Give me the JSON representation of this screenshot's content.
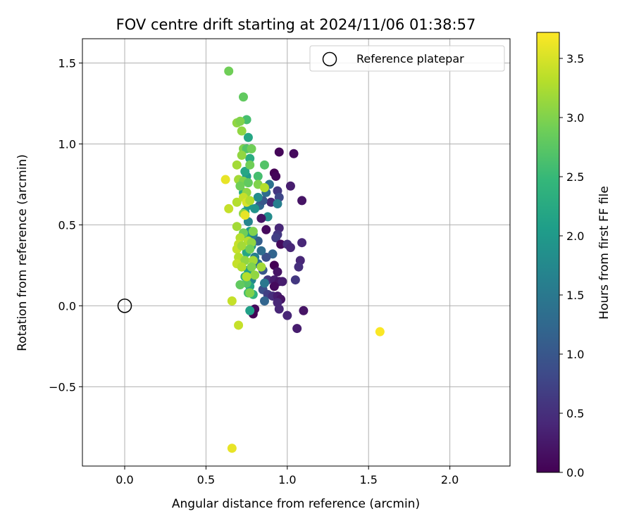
{
  "chart_data": {
    "type": "scatter",
    "title": "FOV centre drift starting at 2024/11/06 01:38:57",
    "xlabel": "Angular distance from reference (arcmin)",
    "ylabel": "Rotation from reference (arcmin)",
    "xlim": [
      -0.26,
      2.37
    ],
    "ylim": [
      -0.99,
      1.65
    ],
    "xticks": [
      0.0,
      0.5,
      1.0,
      1.5,
      2.0
    ],
    "xtick_labels": [
      "0.0",
      "0.5",
      "1.0",
      "1.5",
      "2.0"
    ],
    "yticks": [
      -0.5,
      0.0,
      0.5,
      1.0,
      1.5
    ],
    "ytick_labels": [
      "−0.5",
      "0.0",
      "0.5",
      "1.0",
      "1.5"
    ],
    "grid": true,
    "legend": {
      "placement": "top-right",
      "entries": [
        "Reference platepar"
      ]
    },
    "reference_point": {
      "x": 0.0,
      "y": 0.0
    },
    "colorbar": {
      "label": "Hours from first FF file",
      "range": [
        0.0,
        3.72
      ],
      "ticks": [
        0.0,
        0.5,
        1.0,
        1.5,
        2.0,
        2.5,
        3.0,
        3.5
      ],
      "tick_labels": [
        "0.0",
        "0.5",
        "1.0",
        "1.5",
        "2.0",
        "2.5",
        "3.0",
        "3.5"
      ],
      "colormap": "viridis"
    },
    "points": [
      {
        "x": 0.95,
        "y": 0.95,
        "c": 0.05
      },
      {
        "x": 1.04,
        "y": 0.94,
        "c": 0.1
      },
      {
        "x": 0.92,
        "y": 0.82,
        "c": 0.0
      },
      {
        "x": 0.93,
        "y": 0.8,
        "c": 0.05
      },
      {
        "x": 1.02,
        "y": 0.74,
        "c": 0.3
      },
      {
        "x": 1.09,
        "y": 0.65,
        "c": 0.2
      },
      {
        "x": 0.94,
        "y": 0.71,
        "c": 0.6
      },
      {
        "x": 0.95,
        "y": 0.67,
        "c": 0.8
      },
      {
        "x": 0.9,
        "y": 0.64,
        "c": 0.4
      },
      {
        "x": 0.94,
        "y": 0.63,
        "c": 1.6
      },
      {
        "x": 0.88,
        "y": 0.55,
        "c": 1.8
      },
      {
        "x": 0.84,
        "y": 0.54,
        "c": 0.2
      },
      {
        "x": 0.87,
        "y": 0.47,
        "c": 0.1
      },
      {
        "x": 0.95,
        "y": 0.48,
        "c": 0.4
      },
      {
        "x": 0.94,
        "y": 0.44,
        "c": 0.6
      },
      {
        "x": 0.93,
        "y": 0.42,
        "c": 0.7
      },
      {
        "x": 0.96,
        "y": 0.38,
        "c": 0.1
      },
      {
        "x": 1.0,
        "y": 0.38,
        "c": 0.5
      },
      {
        "x": 1.02,
        "y": 0.36,
        "c": 0.4
      },
      {
        "x": 1.09,
        "y": 0.39,
        "c": 0.4
      },
      {
        "x": 0.91,
        "y": 0.32,
        "c": 1.2
      },
      {
        "x": 0.87,
        "y": 0.3,
        "c": 0.9
      },
      {
        "x": 0.85,
        "y": 0.22,
        "c": 1.0
      },
      {
        "x": 0.92,
        "y": 0.25,
        "c": 0.0
      },
      {
        "x": 0.94,
        "y": 0.21,
        "c": 0.2
      },
      {
        "x": 1.08,
        "y": 0.28,
        "c": 0.4
      },
      {
        "x": 1.07,
        "y": 0.24,
        "c": 0.5
      },
      {
        "x": 0.88,
        "y": 0.16,
        "c": 0.6
      },
      {
        "x": 0.92,
        "y": 0.16,
        "c": 0.3
      },
      {
        "x": 0.95,
        "y": 0.15,
        "c": 0.2
      },
      {
        "x": 0.97,
        "y": 0.15,
        "c": 0.3
      },
      {
        "x": 1.05,
        "y": 0.16,
        "c": 0.6
      },
      {
        "x": 0.92,
        "y": 0.12,
        "c": 0.1
      },
      {
        "x": 0.85,
        "y": 0.1,
        "c": 0.9
      },
      {
        "x": 0.88,
        "y": 0.07,
        "c": 0.7
      },
      {
        "x": 0.91,
        "y": 0.06,
        "c": 0.5
      },
      {
        "x": 0.94,
        "y": 0.06,
        "c": 0.3
      },
      {
        "x": 0.96,
        "y": 0.04,
        "c": 0.2
      },
      {
        "x": 0.94,
        "y": 0.02,
        "c": 0.4
      },
      {
        "x": 0.86,
        "y": 0.03,
        "c": 1.2
      },
      {
        "x": 0.95,
        "y": -0.02,
        "c": 0.4
      },
      {
        "x": 0.8,
        "y": -0.02,
        "c": 0.1
      },
      {
        "x": 0.79,
        "y": -0.05,
        "c": 0.0
      },
      {
        "x": 1.0,
        "y": -0.06,
        "c": 0.4
      },
      {
        "x": 1.1,
        "y": -0.03,
        "c": 0.2
      },
      {
        "x": 1.06,
        "y": -0.14,
        "c": 0.3
      },
      {
        "x": 0.86,
        "y": 0.14,
        "c": 1.5
      },
      {
        "x": 0.78,
        "y": 0.16,
        "c": 1.7
      },
      {
        "x": 0.82,
        "y": 0.26,
        "c": 1.4
      },
      {
        "x": 0.8,
        "y": 0.3,
        "c": 1.6
      },
      {
        "x": 0.84,
        "y": 0.34,
        "c": 1.3
      },
      {
        "x": 0.82,
        "y": 0.4,
        "c": 1.1
      },
      {
        "x": 0.79,
        "y": 0.44,
        "c": 1.6
      },
      {
        "x": 0.83,
        "y": 0.62,
        "c": 1.2
      },
      {
        "x": 0.85,
        "y": 0.65,
        "c": 1.0
      },
      {
        "x": 0.87,
        "y": 0.7,
        "c": 1.3
      },
      {
        "x": 0.89,
        "y": 0.75,
        "c": 1.4
      },
      {
        "x": 0.82,
        "y": 0.67,
        "c": 1.8
      },
      {
        "x": 0.8,
        "y": 0.6,
        "c": 1.9
      },
      {
        "x": 0.76,
        "y": 0.52,
        "c": 1.7
      },
      {
        "x": 0.77,
        "y": 0.46,
        "c": 2.0
      },
      {
        "x": 0.74,
        "y": 0.43,
        "c": 2.1
      },
      {
        "x": 0.78,
        "y": 0.37,
        "c": 1.9
      },
      {
        "x": 0.75,
        "y": 0.33,
        "c": 2.2
      },
      {
        "x": 0.73,
        "y": 0.28,
        "c": 2.3
      },
      {
        "x": 0.76,
        "y": 0.22,
        "c": 2.1
      },
      {
        "x": 0.74,
        "y": 0.18,
        "c": 2.4
      },
      {
        "x": 0.77,
        "y": 0.12,
        "c": 2.2
      },
      {
        "x": 0.79,
        "y": 0.07,
        "c": 2.4
      },
      {
        "x": 0.77,
        "y": -0.03,
        "c": 2.1
      },
      {
        "x": 0.76,
        "y": 0.08,
        "c": 2.6
      },
      {
        "x": 0.75,
        "y": 0.14,
        "c": 2.7
      },
      {
        "x": 0.72,
        "y": 0.24,
        "c": 2.8
      },
      {
        "x": 0.74,
        "y": 0.58,
        "c": 2.2
      },
      {
        "x": 0.76,
        "y": 0.62,
        "c": 2.0
      },
      {
        "x": 0.73,
        "y": 0.7,
        "c": 2.3
      },
      {
        "x": 0.75,
        "y": 0.8,
        "c": 2.0
      },
      {
        "x": 0.74,
        "y": 0.83,
        "c": 2.2
      },
      {
        "x": 0.77,
        "y": 0.91,
        "c": 2.3
      },
      {
        "x": 0.76,
        "y": 1.04,
        "c": 2.2
      },
      {
        "x": 0.75,
        "y": 1.15,
        "c": 2.6
      },
      {
        "x": 0.73,
        "y": 1.29,
        "c": 2.8
      },
      {
        "x": 0.64,
        "y": 1.45,
        "c": 2.9
      },
      {
        "x": 0.69,
        "y": 1.13,
        "c": 3.1
      },
      {
        "x": 0.72,
        "y": 1.08,
        "c": 3.1
      },
      {
        "x": 0.71,
        "y": 1.14,
        "c": 3.0
      },
      {
        "x": 0.73,
        "y": 0.97,
        "c": 3.0
      },
      {
        "x": 0.75,
        "y": 0.97,
        "c": 2.7
      },
      {
        "x": 0.78,
        "y": 0.97,
        "c": 2.9
      },
      {
        "x": 0.72,
        "y": 0.93,
        "c": 3.1
      },
      {
        "x": 0.77,
        "y": 0.87,
        "c": 2.9
      },
      {
        "x": 0.69,
        "y": 0.87,
        "c": 3.2
      },
      {
        "x": 0.86,
        "y": 0.87,
        "c": 2.7
      },
      {
        "x": 0.82,
        "y": 0.8,
        "c": 2.6
      },
      {
        "x": 0.7,
        "y": 0.78,
        "c": 3.2
      },
      {
        "x": 0.73,
        "y": 0.77,
        "c": 3.0
      },
      {
        "x": 0.76,
        "y": 0.76,
        "c": 2.8
      },
      {
        "x": 0.62,
        "y": 0.78,
        "c": 3.6
      },
      {
        "x": 0.82,
        "y": 0.75,
        "c": 3.0
      },
      {
        "x": 0.86,
        "y": 0.73,
        "c": 3.3
      },
      {
        "x": 0.71,
        "y": 0.74,
        "c": 2.9
      },
      {
        "x": 0.75,
        "y": 0.7,
        "c": 3.1
      },
      {
        "x": 0.69,
        "y": 0.64,
        "c": 3.3
      },
      {
        "x": 0.73,
        "y": 0.67,
        "c": 3.4
      },
      {
        "x": 0.75,
        "y": 0.64,
        "c": 3.5
      },
      {
        "x": 0.77,
        "y": 0.65,
        "c": 3.3
      },
      {
        "x": 0.64,
        "y": 0.6,
        "c": 3.4
      },
      {
        "x": 0.73,
        "y": 0.57,
        "c": 3.1
      },
      {
        "x": 0.74,
        "y": 0.56,
        "c": 3.6
      },
      {
        "x": 0.69,
        "y": 0.49,
        "c": 3.2
      },
      {
        "x": 0.73,
        "y": 0.45,
        "c": 2.9
      },
      {
        "x": 0.79,
        "y": 0.46,
        "c": 3.0
      },
      {
        "x": 0.71,
        "y": 0.42,
        "c": 3.3
      },
      {
        "x": 0.7,
        "y": 0.38,
        "c": 3.4
      },
      {
        "x": 0.76,
        "y": 0.4,
        "c": 3.3
      },
      {
        "x": 0.78,
        "y": 0.39,
        "c": 3.1
      },
      {
        "x": 0.69,
        "y": 0.35,
        "c": 3.4
      },
      {
        "x": 0.72,
        "y": 0.37,
        "c": 3.2
      },
      {
        "x": 0.77,
        "y": 0.35,
        "c": 2.9
      },
      {
        "x": 0.7,
        "y": 0.3,
        "c": 3.3
      },
      {
        "x": 0.74,
        "y": 0.28,
        "c": 3.1
      },
      {
        "x": 0.79,
        "y": 0.28,
        "c": 3.2
      },
      {
        "x": 0.69,
        "y": 0.26,
        "c": 3.4
      },
      {
        "x": 0.72,
        "y": 0.24,
        "c": 3.3
      },
      {
        "x": 0.78,
        "y": 0.24,
        "c": 3.0
      },
      {
        "x": 0.84,
        "y": 0.24,
        "c": 3.2
      },
      {
        "x": 0.8,
        "y": 0.19,
        "c": 3.1
      },
      {
        "x": 0.75,
        "y": 0.18,
        "c": 3.3
      },
      {
        "x": 0.71,
        "y": 0.13,
        "c": 2.8
      },
      {
        "x": 0.77,
        "y": 0.08,
        "c": 3.0
      },
      {
        "x": 0.66,
        "y": 0.03,
        "c": 3.4
      },
      {
        "x": 0.7,
        "y": -0.12,
        "c": 3.4
      },
      {
        "x": 1.57,
        "y": -0.16,
        "c": 3.7
      },
      {
        "x": 0.66,
        "y": -0.88,
        "c": 3.6
      }
    ]
  }
}
